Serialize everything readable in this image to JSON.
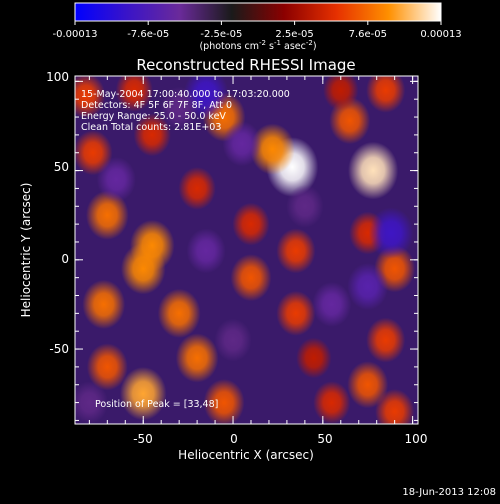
{
  "colorbar": {
    "ticks": [
      "-0.00013",
      "-7.6e-05",
      "-2.5e-05",
      "2.5e-05",
      "7.6e-05",
      "0.00013"
    ],
    "units_main": "(photons cm",
    "units_exp1": "-2",
    "units_mid": " s",
    "units_exp2": "-1",
    "units_mid2": " asec",
    "units_exp3": "-2",
    "units_end": ")",
    "colors": [
      "#0000ff",
      "#3a14c8",
      "#6a2a9a",
      "#1a1a1a",
      "#8b0000",
      "#e63000",
      "#ff9000",
      "#ffffff"
    ]
  },
  "plot": {
    "title": "Reconstructed RHESSI Image",
    "xlabel": "Heliocentric X (arcsec)",
    "ylabel": "Heliocentric Y (arcsec)",
    "xticks": [
      "-50",
      "0",
      "50",
      "100"
    ],
    "yticks": [
      "100",
      "50",
      "0",
      "-50"
    ],
    "info": [
      "15-May-2004 17:00:40.000 to 17:03:20.000",
      "Detectors: 4F 5F 6F 7F 8F, Att 0",
      "Energy Range: 25.0 - 50.0 keV",
      "Clean     Total counts: 2.81E+03"
    ],
    "peak_text": "Position of Peak = [33,48]",
    "footer_date": "18-Jun-2013 12:08"
  },
  "chart_data": {
    "type": "heatmap",
    "title": "Reconstructed RHESSI Image",
    "xlabel": "Heliocentric X (arcsec)",
    "ylabel": "Heliocentric Y (arcsec)",
    "xlim": [
      -88,
      103
    ],
    "ylim": [
      -92,
      103
    ],
    "color_range": [
      -0.00013,
      0.00013
    ],
    "colorbar_units": "(photons cm-2 s-1 asec-2)",
    "peak": {
      "x": 33,
      "y": 48
    },
    "blobs": [
      {
        "x": 33,
        "y": 52,
        "value": 0.00013
      },
      {
        "x": 78,
        "y": 50,
        "value": 0.00012
      },
      {
        "x": 22,
        "y": 62,
        "value": 9e-05
      },
      {
        "x": -5,
        "y": 80,
        "value": 8e-05
      },
      {
        "x": 65,
        "y": 78,
        "value": 7e-05
      },
      {
        "x": 85,
        "y": 95,
        "value": 6e-05
      },
      {
        "x": -82,
        "y": 92,
        "value": 6e-05
      },
      {
        "x": -45,
        "y": 70,
        "value": 5e-05
      },
      {
        "x": -78,
        "y": 60,
        "value": 6e-05
      },
      {
        "x": -70,
        "y": 25,
        "value": 8e-05
      },
      {
        "x": -45,
        "y": 8,
        "value": 9e-05
      },
      {
        "x": -50,
        "y": -5,
        "value": 9e-05
      },
      {
        "x": -72,
        "y": -25,
        "value": 8e-05
      },
      {
        "x": -30,
        "y": -30,
        "value": 8e-05
      },
      {
        "x": -20,
        "y": 40,
        "value": 5e-05
      },
      {
        "x": 10,
        "y": 20,
        "value": 5e-05
      },
      {
        "x": 35,
        "y": 5,
        "value": 6e-05
      },
      {
        "x": 10,
        "y": -10,
        "value": 7e-05
      },
      {
        "x": 35,
        "y": -30,
        "value": 6e-05
      },
      {
        "x": 75,
        "y": 15,
        "value": 5e-05
      },
      {
        "x": 90,
        "y": -5,
        "value": 7e-05
      },
      {
        "x": 85,
        "y": -45,
        "value": 6e-05
      },
      {
        "x": 75,
        "y": -70,
        "value": 7e-05
      },
      {
        "x": 90,
        "y": -85,
        "value": 6e-05
      },
      {
        "x": -50,
        "y": -75,
        "value": 0.0001
      },
      {
        "x": -70,
        "y": -60,
        "value": 7e-05
      },
      {
        "x": -20,
        "y": -55,
        "value": 8e-05
      },
      {
        "x": -5,
        "y": -80,
        "value": 7e-05
      },
      {
        "x": 55,
        "y": -80,
        "value": 5e-05
      },
      {
        "x": 45,
        "y": -55,
        "value": 4e-05
      },
      {
        "x": -55,
        "y": 95,
        "value": 5e-05
      },
      {
        "x": 60,
        "y": 95,
        "value": 4e-05
      },
      {
        "x": -15,
        "y": 93,
        "value": -9e-05
      },
      {
        "x": 5,
        "y": 65,
        "value": -6e-05
      },
      {
        "x": 88,
        "y": 15,
        "value": -9e-05
      },
      {
        "x": 75,
        "y": -15,
        "value": -7e-05
      },
      {
        "x": -15,
        "y": 5,
        "value": -6e-05
      },
      {
        "x": -65,
        "y": 45,
        "value": -6e-05
      },
      {
        "x": -80,
        "y": -80,
        "value": -5e-05
      },
      {
        "x": 40,
        "y": 30,
        "value": -5e-05
      },
      {
        "x": 0,
        "y": -45,
        "value": -5e-05
      },
      {
        "x": 55,
        "y": -25,
        "value": -6e-05
      },
      {
        "x": -30,
        "y": 85,
        "value": -5e-05
      }
    ]
  }
}
